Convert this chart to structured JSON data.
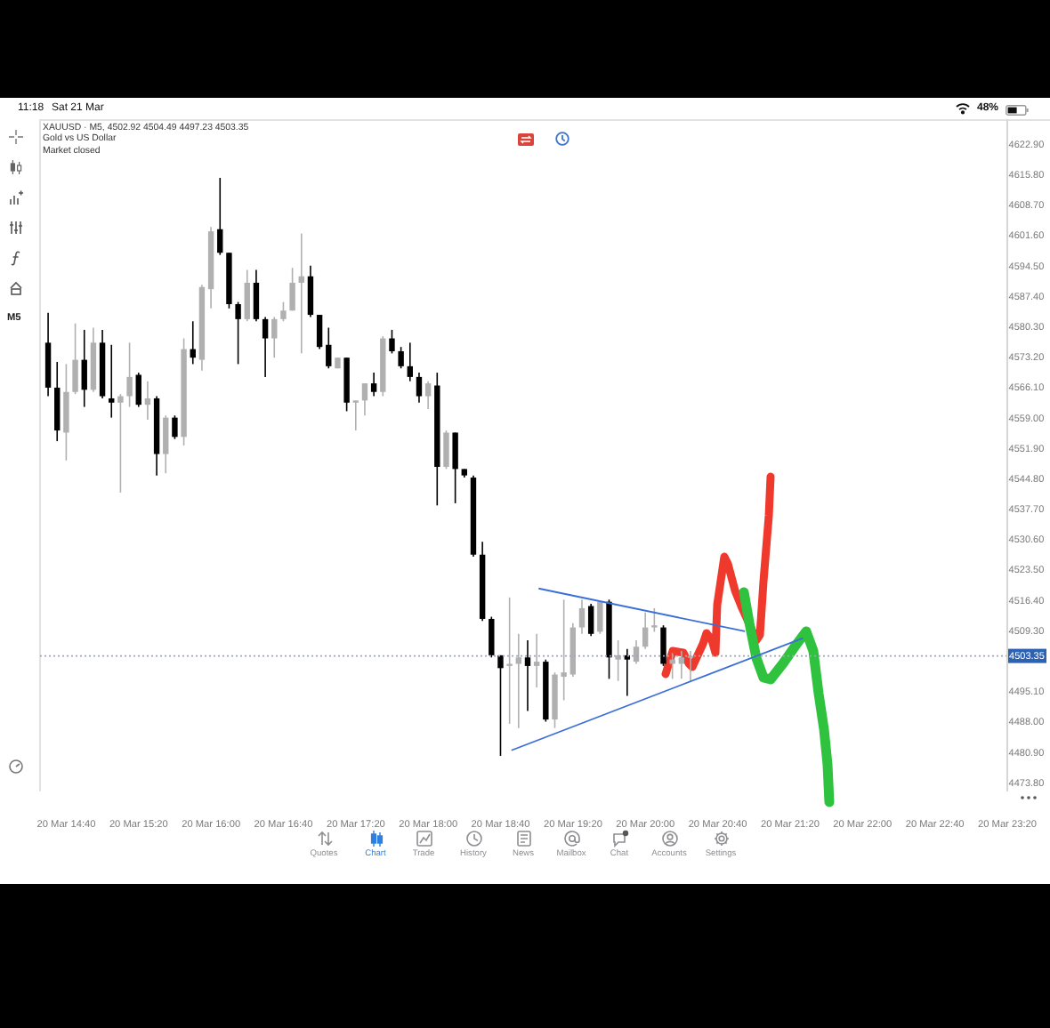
{
  "chart_data": {
    "type": "candlestick",
    "title": "XAUUSD · M5, 4502.92 4504.49 4497.23 4503.35",
    "subtitle": "Gold vs US Dollar",
    "annotations": [
      "Market closed",
      "11:18",
      "Sat 21 Mar",
      "48%",
      "M5",
      "Quotes",
      "Chart",
      "Trade",
      "History",
      "News",
      "Mailbox",
      "Chat",
      "Accounts",
      "Settings"
    ],
    "x": [
      "--03-20T14:30",
      "--03-20T14:35",
      "--03-20T14:40",
      "--03-20T14:45",
      "--03-20T14:50",
      "--03-20T14:55",
      "--03-20T15:00",
      "--03-20T15:05",
      "--03-20T15:10",
      "--03-20T15:15",
      "--03-20T15:20",
      "--03-20T15:25",
      "--03-20T15:30",
      "--03-20T15:35",
      "--03-20T15:40",
      "--03-20T15:45",
      "--03-20T15:50",
      "--03-20T15:55",
      "--03-20T16:00",
      "--03-20T16:05",
      "--03-20T16:10",
      "--03-20T16:15",
      "--03-20T16:20",
      "--03-20T16:25",
      "--03-20T16:30",
      "--03-20T16:35",
      "--03-20T16:40",
      "--03-20T16:45",
      "--03-20T16:50",
      "--03-20T16:55",
      "--03-20T17:00",
      "--03-20T17:05",
      "--03-20T17:10",
      "--03-20T17:15",
      "--03-20T17:20",
      "--03-20T17:25",
      "--03-20T17:30",
      "--03-20T17:35",
      "--03-20T17:40",
      "--03-20T17:45",
      "--03-20T17:50",
      "--03-20T17:55",
      "--03-20T18:00",
      "--03-20T18:05",
      "--03-20T18:10",
      "--03-20T18:15",
      "--03-20T18:20",
      "--03-20T18:25",
      "--03-20T18:30",
      "--03-20T18:35",
      "--03-20T18:40",
      "--03-20T18:45",
      "--03-20T18:50",
      "--03-20T18:55",
      "--03-20T19:00",
      "--03-20T19:05",
      "--03-20T19:10",
      "--03-20T19:15",
      "--03-20T19:20",
      "--03-20T19:25",
      "--03-20T19:30",
      "--03-20T19:35",
      "--03-20T19:40",
      "--03-20T19:45",
      "--03-20T19:50",
      "--03-20T19:55",
      "--03-20T20:00",
      "--03-20T20:05",
      "--03-20T20:10",
      "--03-20T20:15",
      "--03-20T20:20",
      "--03-20T20:25"
    ],
    "ohlc": [
      [
        4576.5,
        4583.5,
        4564,
        4566
      ],
      [
        4566,
        4572,
        4553.5,
        4556
      ],
      [
        4555.5,
        4571.5,
        4549,
        4565
      ],
      [
        4565,
        4581,
        4564.5,
        4572.5
      ],
      [
        4572.5,
        4579.5,
        4561.5,
        4565.5
      ],
      [
        4565.5,
        4580,
        4565,
        4576.5
      ],
      [
        4576.5,
        4579.5,
        4563.5,
        4564
      ],
      [
        4563.5,
        4576,
        4559,
        4562.5
      ],
      [
        4562.5,
        4564.5,
        4541.5,
        4564
      ],
      [
        4564,
        4576.5,
        4561.5,
        4568.5
      ],
      [
        4569,
        4569.5,
        4561.5,
        4562
      ],
      [
        4562,
        4567.5,
        4558.5,
        4563.5
      ],
      [
        4563.5,
        4564,
        4545.5,
        4550.5
      ],
      [
        4550.5,
        4559.5,
        4546,
        4559
      ],
      [
        4559,
        4559.5,
        4554,
        4554.5
      ],
      [
        4554.5,
        4577.5,
        4552.5,
        4575
      ],
      [
        4575,
        4581.5,
        4571.5,
        4573
      ],
      [
        4572.5,
        4590,
        4570,
        4589.5
      ],
      [
        4589,
        4603.5,
        4584.5,
        4602.5
      ],
      [
        4603,
        4615,
        4597,
        4597.5
      ],
      [
        4597.5,
        4597.5,
        4584.5,
        4585.5
      ],
      [
        4585.5,
        4586,
        4571.5,
        4582
      ],
      [
        4582,
        4593.5,
        4581.5,
        4590.5
      ],
      [
        4590.5,
        4593.5,
        4581.5,
        4582
      ],
      [
        4582,
        4582.5,
        4568.5,
        4577.5
      ],
      [
        4577.5,
        4582.5,
        4573,
        4582
      ],
      [
        4582,
        4586,
        4581.5,
        4584
      ],
      [
        4584,
        4594,
        4584,
        4590.5
      ],
      [
        4590.5,
        4602,
        4574,
        4592
      ],
      [
        4592,
        4594.5,
        4582.5,
        4583
      ],
      [
        4583,
        4583,
        4575,
        4575.5
      ],
      [
        4576,
        4580,
        4570.5,
        4571
      ],
      [
        4570.5,
        4573,
        4570.5,
        4573
      ],
      [
        4573,
        4573,
        4560.5,
        4562.5
      ],
      [
        4562.5,
        4563,
        4556,
        4563
      ],
      [
        4563,
        4567,
        4559.5,
        4567
      ],
      [
        4567,
        4569.5,
        4564,
        4565
      ],
      [
        4565,
        4578,
        4564,
        4577.5
      ],
      [
        4577.5,
        4579.5,
        4574,
        4574.5
      ],
      [
        4574.5,
        4575.5,
        4570.5,
        4571
      ],
      [
        4571,
        4576.5,
        4567.5,
        4568.5
      ],
      [
        4568.5,
        4569.5,
        4562.5,
        4564
      ],
      [
        4564,
        4567.5,
        4561,
        4567
      ],
      [
        4566.5,
        4569.5,
        4538.5,
        4547.5
      ],
      [
        4547.5,
        4556,
        4547,
        4555.5
      ],
      [
        4555.5,
        4555.5,
        4539,
        4547
      ],
      [
        4547,
        4547,
        4545,
        4545.5
      ],
      [
        4545,
        4545.5,
        4526.5,
        4527
      ],
      [
        4527,
        4530,
        4511.5,
        4512
      ],
      [
        4512,
        4512.5,
        4503,
        4503.5
      ],
      [
        4503.5,
        4503.5,
        4480,
        4500.5
      ],
      [
        4501,
        4517,
        4487.5,
        4501.5
      ],
      [
        4501.5,
        4508.5,
        4486.5,
        4503
      ],
      [
        4503,
        4507,
        4490.5,
        4501
      ],
      [
        4501,
        4508.5,
        4496,
        4502
      ],
      [
        4502,
        4502.5,
        4488,
        4488.5
      ],
      [
        4488.5,
        4499.5,
        4486.5,
        4499
      ],
      [
        4498.5,
        4516.5,
        4493,
        4499.5
      ],
      [
        4499,
        4511,
        4498.5,
        4510
      ],
      [
        4510,
        4516.5,
        4508.5,
        4514.5
      ],
      [
        4515,
        4515.5,
        4508,
        4508.5
      ],
      [
        4509,
        4516,
        4508.5,
        4516
      ],
      [
        4516,
        4516.5,
        4498,
        4503
      ],
      [
        4502.5,
        4507,
        4497.5,
        4503.5
      ],
      [
        4503.5,
        4505,
        4494,
        4502.5
      ],
      [
        4502,
        4507,
        4501.5,
        4505.5
      ],
      [
        4505.5,
        4513.5,
        4505,
        4510
      ],
      [
        4510,
        4514.5,
        4509,
        4510.5
      ],
      [
        4510,
        4510.5,
        4501,
        4501.5
      ],
      [
        4501.5,
        4504,
        4498,
        4502.5
      ],
      [
        4501.5,
        4504.5,
        4498,
        4503
      ],
      [
        4502.92,
        4504.49,
        4497.23,
        4503.35
      ]
    ],
    "colors": [
      "#000000",
      "#000000",
      "#b0b0b0",
      "#b0b0b0",
      "#000000",
      "#b0b0b0",
      "#000000",
      "#000000",
      "#b0b0b0",
      "#b0b0b0",
      "#000000",
      "#b0b0b0",
      "#000000",
      "#b0b0b0",
      "#000000",
      "#b0b0b0",
      "#000000",
      "#b0b0b0",
      "#b0b0b0",
      "#000000",
      "#000000",
      "#000000",
      "#b0b0b0",
      "#000000",
      "#000000",
      "#b0b0b0",
      "#b0b0b0",
      "#b0b0b0",
      "#b0b0b0",
      "#000000",
      "#000000",
      "#000000",
      "#b0b0b0",
      "#000000",
      "#b0b0b0",
      "#b0b0b0",
      "#000000",
      "#b0b0b0",
      "#000000",
      "#000000",
      "#000000",
      "#000000",
      "#b0b0b0",
      "#000000",
      "#b0b0b0",
      "#000000",
      "#000000",
      "#000000",
      "#000000",
      "#000000",
      "#000000",
      "#b0b0b0",
      "#b0b0b0",
      "#000000",
      "#b0b0b0",
      "#000000",
      "#b0b0b0",
      "#b0b0b0",
      "#b0b0b0",
      "#b0b0b0",
      "#000000",
      "#b0b0b0",
      "#000000",
      "#b0b0b0",
      "#000000",
      "#b0b0b0",
      "#b0b0b0",
      "#b0b0b0",
      "#000000",
      "#b0b0b0",
      "#b0b0b0",
      "#b0b0b0"
    ],
    "series": [
      {
        "type": "line",
        "x": [
          "--03-20T19:01",
          "--03-20T20:55"
        ],
        "values": [
          4519.1,
          4509.1
        ],
        "color": "#3a6fd8"
      },
      {
        "type": "line",
        "x": [
          "--03-20T18:46",
          "--03-20T21:27"
        ],
        "values": [
          4481.3,
          4507.5
        ],
        "color": "#3a6fd8"
      }
    ],
    "xlim": [
      "--03-20T14:25",
      "--03-20T23:20"
    ],
    "xticks": [
      {
        "value": "--03-20T14:40",
        "label": "20 Mar 14:40"
      },
      {
        "value": "--03-20T15:20",
        "label": "20 Mar 15:20"
      },
      {
        "value": "--03-20T16:00",
        "label": "20 Mar 16:00"
      },
      {
        "value": "--03-20T16:40",
        "label": "20 Mar 16:40"
      },
      {
        "value": "--03-20T17:20",
        "label": "20 Mar 17:20"
      },
      {
        "value": "--03-20T18:00",
        "label": "20 Mar 18:00"
      },
      {
        "value": "--03-20T18:40",
        "label": "20 Mar 18:40"
      },
      {
        "value": "--03-20T19:20",
        "label": "20 Mar 19:20"
      },
      {
        "value": "--03-20T20:00",
        "label": "20 Mar 20:00"
      },
      {
        "value": "--03-20T20:40",
        "label": "20 Mar 20:40"
      },
      {
        "value": "--03-20T21:20",
        "label": "20 Mar 21:20"
      },
      {
        "value": "--03-20T22:00",
        "label": "20 Mar 22:00"
      },
      {
        "value": "--03-20T22:40",
        "label": "20 Mar 22:40"
      },
      {
        "value": "--03-20T23:20",
        "label": "20 Mar 23:20"
      }
    ],
    "ylim": [
      4471.7,
      4628.7
    ],
    "yticks": [
      {
        "value": 4622.9,
        "label": "4622.90"
      },
      {
        "value": 4615.8,
        "label": "4615.80"
      },
      {
        "value": 4608.7,
        "label": "4608.70"
      },
      {
        "value": 4601.6,
        "label": "4601.60"
      },
      {
        "value": 4594.5,
        "label": "4594.50"
      },
      {
        "value": 4587.4,
        "label": "4587.40"
      },
      {
        "value": 4580.3,
        "label": "4580.30"
      },
      {
        "value": 4573.2,
        "label": "4573.20"
      },
      {
        "value": 4566.1,
        "label": "4566.10"
      },
      {
        "value": 4559,
        "label": "4559.00"
      },
      {
        "value": 4551.9,
        "label": "4551.90"
      },
      {
        "value": 4544.8,
        "label": "4544.80"
      },
      {
        "value": 4537.7,
        "label": "4537.70"
      },
      {
        "value": 4530.6,
        "label": "4530.60"
      },
      {
        "value": 4523.5,
        "label": "4523.50"
      },
      {
        "value": 4516.4,
        "label": "4516.40"
      },
      {
        "value": 4509.3,
        "label": "4509.30"
      },
      {
        "value": 4495.1,
        "label": "4495.10"
      },
      {
        "value": 4488,
        "label": "4488.00"
      },
      {
        "value": 4480.9,
        "label": "4480.90"
      },
      {
        "value": 4473.8,
        "label": "4473.80"
      }
    ],
    "ref_lines": [
      {
        "axis": "y",
        "value": 4503.35,
        "label": "4503.35",
        "color": "#9aa8b8",
        "line_style": "dotted"
      }
    ]
  }
}
